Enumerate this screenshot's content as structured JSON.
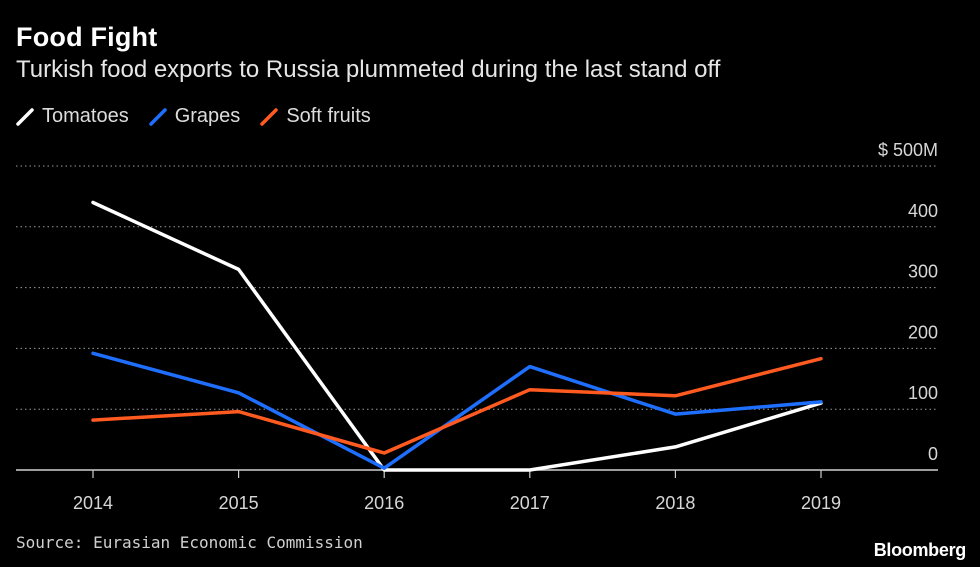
{
  "chart_data": {
    "type": "line",
    "title": "Food Fight",
    "subtitle": "Turkish food exports to Russia plummeted during the last stand off",
    "categories": [
      "2014",
      "2015",
      "2016",
      "2017",
      "2018",
      "2019"
    ],
    "series": [
      {
        "name": "Tomatoes",
        "color": "#ffffff",
        "values": [
          440,
          330,
          0,
          0,
          38,
          110
        ]
      },
      {
        "name": "Grapes",
        "color": "#1f6fff",
        "values": [
          192,
          127,
          3,
          170,
          92,
          112
        ]
      },
      {
        "name": "Soft fruits",
        "color": "#ff5a1f",
        "values": [
          82,
          96,
          28,
          132,
          122,
          183
        ]
      }
    ],
    "y_ticks": [
      {
        "value": 0,
        "label": "0"
      },
      {
        "value": 100,
        "label": "100"
      },
      {
        "value": 200,
        "label": "200"
      },
      {
        "value": 300,
        "label": "300"
      },
      {
        "value": 400,
        "label": "400"
      },
      {
        "value": 500,
        "label": "$ 500M"
      }
    ],
    "ylim": [
      0,
      500
    ],
    "xlabel": "",
    "ylabel": "",
    "grid": true,
    "legend_position": "top-left"
  },
  "source": "Source: Eurasian Economic Commission",
  "brand": "Bloomberg"
}
